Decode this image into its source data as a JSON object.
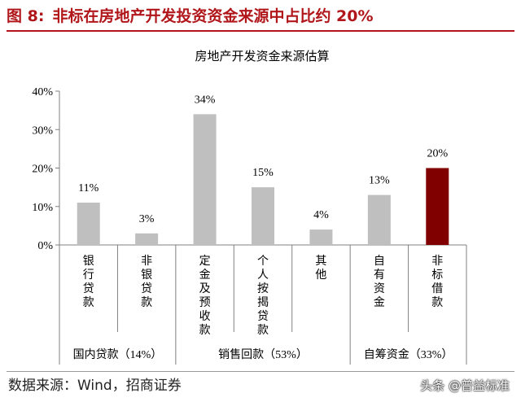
{
  "figure": {
    "number": "图 8:",
    "caption": "非标在房地产开发投资资金来源中占比约 20%"
  },
  "source": "数据来源：Wind，招商证券",
  "watermark": "头条 @普益标准",
  "colors": {
    "accent": "#b0161a",
    "bar": "#bfbfbf",
    "highlight": "#800000"
  },
  "chart_data": {
    "type": "bar",
    "title": "房地产开发资金来源估算",
    "categories": [
      "银行贷款",
      "非银贷款",
      "定金及预收款",
      "个人按揭贷款",
      "其他",
      "自有资金",
      "非标借款"
    ],
    "values": [
      11,
      3,
      34,
      15,
      4,
      13,
      20
    ],
    "data_labels": [
      "11%",
      "3%",
      "34%",
      "15%",
      "4%",
      "13%",
      "20%"
    ],
    "highlight_index": 6,
    "ylim": [
      0,
      40
    ],
    "yticks": [
      0,
      10,
      20,
      30,
      40
    ],
    "ytick_labels": [
      "0%",
      "10%",
      "20%",
      "30%",
      "40%"
    ],
    "groups": [
      {
        "label": "国内贷款（14%）",
        "start": 0,
        "end": 1
      },
      {
        "label": "销售回款（53%）",
        "start": 2,
        "end": 4
      },
      {
        "label": "自筹资金（33%）",
        "start": 5,
        "end": 6
      }
    ],
    "xlabel": "",
    "ylabel": "",
    "grid": false,
    "legend": "none"
  }
}
